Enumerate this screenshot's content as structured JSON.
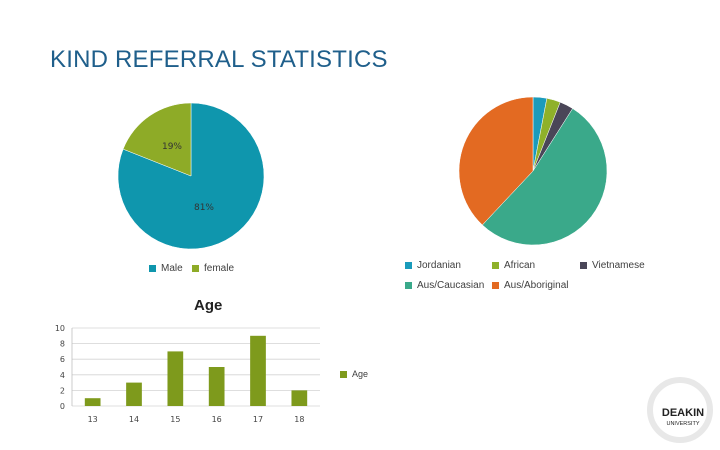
{
  "slide": {
    "title": "KIND REFERRAL STATISTICS"
  },
  "chart_data": [
    {
      "type": "pie",
      "title": "",
      "categories": [
        "Male",
        "female"
      ],
      "values": [
        81,
        19
      ],
      "labels": [
        "81%",
        "19%"
      ],
      "colors": [
        "#0f96ad",
        "#8eab27"
      ],
      "legend": "bottom"
    },
    {
      "type": "pie",
      "title": "",
      "categories": [
        "Jordanian",
        "African",
        "Vietnamese",
        "Aus/Caucasian",
        "Aus/Aboriginal"
      ],
      "values": [
        3,
        3,
        3,
        53,
        38
      ],
      "colors": [
        "#1a9bbb",
        "#8fb12a",
        "#4a4658",
        "#3aa98a",
        "#e36a22"
      ],
      "legend": "bottom"
    },
    {
      "type": "bar",
      "title": "Age",
      "categories": [
        "13",
        "14",
        "15",
        "16",
        "17",
        "18"
      ],
      "series": [
        {
          "name": "Age",
          "values": [
            1,
            3,
            7,
            5,
            9,
            2
          ]
        }
      ],
      "ylim": [
        0,
        10
      ],
      "yticks": [
        "0",
        "2",
        "4",
        "6",
        "8",
        "10"
      ],
      "color": "#7e9a1c",
      "grid": true,
      "legend": "right"
    }
  ],
  "logo": {
    "text_top": "DEAKIN",
    "text_bottom": "UNIVERSITY"
  }
}
